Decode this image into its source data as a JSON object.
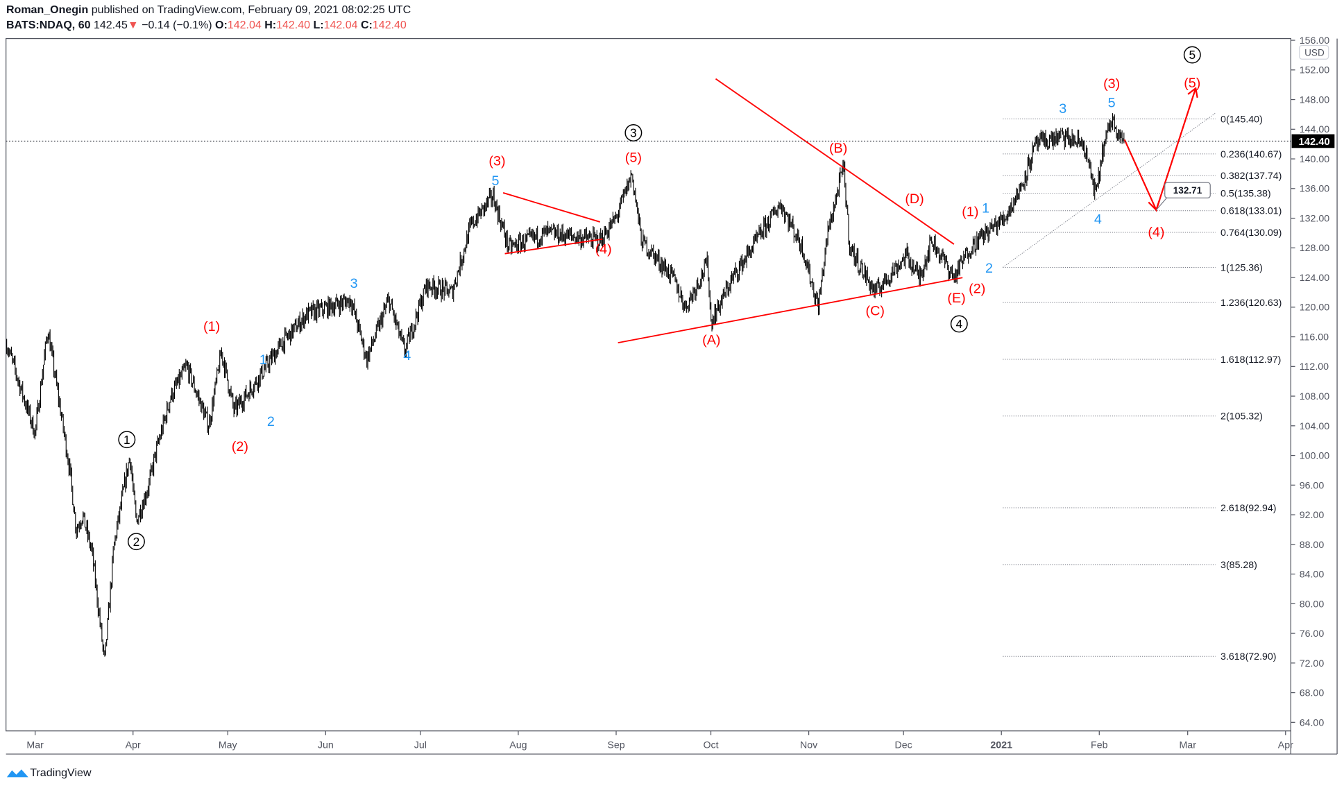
{
  "header": {
    "author": "Roman_Onegin",
    "published_text": "published on TradingView.com, February 09, 2021 08:02:25 UTC",
    "symbol": "BATS:NDAQ, 60",
    "last": "142.45",
    "change": "−0.14 (−0.1%)",
    "o_label": "O:",
    "o": "142.04",
    "h_label": "H:",
    "h": "142.40",
    "l_label": "L:",
    "l": "142.04",
    "c_label": "C:",
    "c": "142.40"
  },
  "footer": {
    "brand": "TradingView"
  },
  "colors": {
    "red": "#ff0000",
    "blue": "#2196f3",
    "black": "#000000",
    "axis": "#50535e",
    "down": "#ef5350"
  },
  "chart_data": {
    "type": "line",
    "ylim": [
      64,
      156
    ],
    "currency": "USD",
    "current_price": "142.40",
    "yticks": [
      "64.00",
      "68.00",
      "72.00",
      "76.00",
      "80.00",
      "84.00",
      "88.00",
      "92.00",
      "96.00",
      "100.00",
      "104.00",
      "108.00",
      "112.00",
      "116.00",
      "120.00",
      "124.00",
      "128.00",
      "132.00",
      "136.00",
      "140.00",
      "144.00",
      "148.00",
      "152.00",
      "156.00"
    ],
    "xticks": [
      {
        "label": "Mar",
        "date": "2020-03-01"
      },
      {
        "label": "Apr",
        "date": "2020-04-01"
      },
      {
        "label": "May",
        "date": "2020-05-01"
      },
      {
        "label": "Jun",
        "date": "2020-06-01"
      },
      {
        "label": "Jul",
        "date": "2020-07-01"
      },
      {
        "label": "Aug",
        "date": "2020-08-01"
      },
      {
        "label": "Sep",
        "date": "2020-09-01"
      },
      {
        "label": "Oct",
        "date": "2020-10-01"
      },
      {
        "label": "Nov",
        "date": "2020-11-01"
      },
      {
        "label": "Dec",
        "date": "2020-12-01"
      },
      {
        "label": "2021",
        "date": "2021-01-01"
      },
      {
        "label": "Feb",
        "date": "2021-02-01"
      },
      {
        "label": "Mar",
        "date": "2021-03-01"
      },
      {
        "label": "Apr",
        "date": "2021-04-01"
      }
    ],
    "price_points": [
      [
        "2020-02-21",
        115
      ],
      [
        "2020-03-01",
        103
      ],
      [
        "2020-03-05",
        117
      ],
      [
        "2020-03-12",
        98
      ],
      [
        "2020-03-14",
        90
      ],
      [
        "2020-03-16",
        92
      ],
      [
        "2020-03-19",
        87
      ],
      [
        "2020-03-23",
        72
      ],
      [
        "2020-03-26",
        88
      ],
      [
        "2020-03-31",
        100
      ],
      [
        "2020-04-02",
        91
      ],
      [
        "2020-04-06",
        96
      ],
      [
        "2020-04-08",
        100
      ],
      [
        "2020-04-13",
        108
      ],
      [
        "2020-04-18",
        112
      ],
      [
        "2020-04-25",
        104
      ],
      [
        "2020-04-29",
        114
      ],
      [
        "2020-05-03",
        106
      ],
      [
        "2020-05-10",
        110
      ],
      [
        "2020-05-18",
        115
      ],
      [
        "2020-05-26",
        119
      ],
      [
        "2020-06-09",
        121
      ],
      [
        "2020-06-14",
        113
      ],
      [
        "2020-06-21",
        121
      ],
      [
        "2020-06-26",
        114
      ],
      [
        "2020-07-03",
        123
      ],
      [
        "2020-07-11",
        122
      ],
      [
        "2020-07-17",
        131
      ],
      [
        "2020-07-24",
        135
      ],
      [
        "2020-07-29",
        128
      ],
      [
        "2020-08-10",
        130
      ],
      [
        "2020-08-27",
        129
      ],
      [
        "2020-09-01",
        132
      ],
      [
        "2020-09-06",
        138
      ],
      [
        "2020-09-09",
        129
      ],
      [
        "2020-09-19",
        124
      ],
      [
        "2020-09-23",
        120
      ],
      [
        "2020-09-30",
        126
      ],
      [
        "2020-10-01",
        118
      ],
      [
        "2020-10-08",
        124
      ],
      [
        "2020-10-23",
        134
      ],
      [
        "2020-10-30",
        128
      ],
      [
        "2020-11-04",
        120
      ],
      [
        "2020-11-07",
        130
      ],
      [
        "2020-11-12",
        139
      ],
      [
        "2020-11-14",
        128
      ],
      [
        "2020-11-22",
        122
      ],
      [
        "2020-12-02",
        127
      ],
      [
        "2020-12-06",
        124
      ],
      [
        "2020-12-10",
        129
      ],
      [
        "2020-12-17",
        124
      ],
      [
        "2020-12-22",
        128
      ],
      [
        "2020-12-27",
        130
      ],
      [
        "2021-01-02",
        132
      ],
      [
        "2021-01-07",
        136
      ],
      [
        "2021-01-12",
        142
      ],
      [
        "2021-01-20",
        143
      ],
      [
        "2021-01-27",
        142
      ],
      [
        "2021-01-31",
        135
      ],
      [
        "2021-02-02",
        141
      ],
      [
        "2021-02-05",
        145.4
      ],
      [
        "2021-02-09",
        142.4
      ]
    ],
    "fib_levels": [
      {
        "ratio": "0",
        "value": 145.4,
        "label": "0(145.40)"
      },
      {
        "ratio": "0.236",
        "value": 140.67,
        "label": "0.236(140.67)"
      },
      {
        "ratio": "0.382",
        "value": 137.74,
        "label": "0.382(137.74)"
      },
      {
        "ratio": "0.5",
        "value": 135.38,
        "label": "0.5(135.38)"
      },
      {
        "ratio": "0.618",
        "value": 133.01,
        "label": "0.618(133.01)"
      },
      {
        "ratio": "0.764",
        "value": 130.09,
        "label": "0.764(130.09)"
      },
      {
        "ratio": "1",
        "value": 125.36,
        "label": "1(125.36)"
      },
      {
        "ratio": "1.236",
        "value": 120.63,
        "label": "1.236(120.63)"
      },
      {
        "ratio": "1.618",
        "value": 112.97,
        "label": "1.618(112.97)"
      },
      {
        "ratio": "2",
        "value": 105.32,
        "label": "2(105.32)"
      },
      {
        "ratio": "2.618",
        "value": 92.94,
        "label": "2.618(92.94)"
      },
      {
        "ratio": "3",
        "value": 85.28,
        "label": "3(85.28)"
      },
      {
        "ratio": "3.618",
        "value": 72.9,
        "label": "3.618(72.90)"
      }
    ],
    "target_callout": "132.71",
    "wave_labels": [
      {
        "text": "1",
        "style": "circle"
      },
      {
        "text": "2",
        "style": "circle"
      },
      {
        "text": "3",
        "style": "circle"
      },
      {
        "text": "4",
        "style": "circle"
      },
      {
        "text": "5",
        "style": "circle"
      },
      {
        "text": "(1)",
        "style": "red"
      },
      {
        "text": "(2)",
        "style": "red"
      },
      {
        "text": "(3)",
        "style": "red"
      },
      {
        "text": "(4)",
        "style": "red"
      },
      {
        "text": "(5)",
        "style": "red"
      },
      {
        "text": "(A)",
        "style": "red"
      },
      {
        "text": "(B)",
        "style": "red"
      },
      {
        "text": "(C)",
        "style": "red"
      },
      {
        "text": "(D)",
        "style": "red"
      },
      {
        "text": "(E)",
        "style": "red"
      },
      {
        "text": "(1)",
        "style": "red"
      },
      {
        "text": "(2)",
        "style": "red"
      },
      {
        "text": "(3)",
        "style": "red"
      },
      {
        "text": "(4)",
        "style": "red"
      },
      {
        "text": "(5)",
        "style": "red"
      },
      {
        "text": "1",
        "style": "blue"
      },
      {
        "text": "2",
        "style": "blue"
      },
      {
        "text": "3",
        "style": "blue"
      },
      {
        "text": "4",
        "style": "blue"
      },
      {
        "text": "5",
        "style": "blue"
      },
      {
        "text": "1",
        "style": "blue"
      },
      {
        "text": "2",
        "style": "blue"
      },
      {
        "text": "3",
        "style": "blue"
      },
      {
        "text": "4",
        "style": "blue"
      },
      {
        "text": "5",
        "style": "blue"
      }
    ]
  }
}
